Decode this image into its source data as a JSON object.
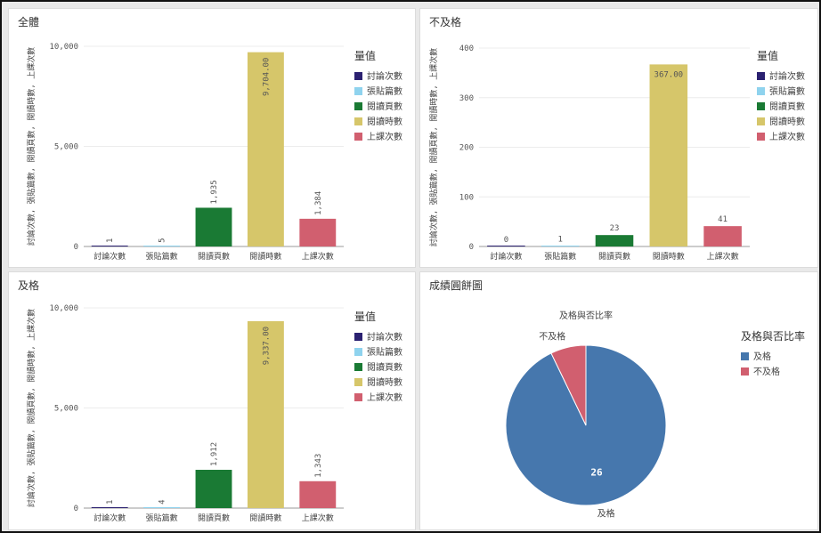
{
  "colors": {
    "討論次數": "#2b2171",
    "張貼篇數": "#8fd3ee",
    "閱讀頁數": "#1a7a34",
    "閱讀時數": "#d6c66a",
    "上課次數": "#d15f6f",
    "及格": "#4677ad",
    "不及格": "#d15f6f"
  },
  "panels": {
    "all": {
      "title": "全體",
      "y_axis_label": "討論次數, 張貼篇數, 閱讀頁數, 閱讀時數, 上課次數",
      "legend_title": "量值"
    },
    "fail": {
      "title": "不及格",
      "y_axis_label": "討論次數, 張貼篇數, 閱讀頁數, 閱讀時數, 上課次數",
      "legend_title": "量值"
    },
    "pass": {
      "title": "及格",
      "y_axis_label": "討論次數, 張貼篇數, 閱讀頁數, 閱讀時數, 上課次數",
      "legend_title": "量值"
    },
    "pie": {
      "title": "成績圓餅圖",
      "chart_title": "及格與否比率",
      "legend_title": "及格與否比率"
    }
  },
  "chart_data": [
    {
      "id": "all",
      "type": "bar",
      "title": "全體",
      "ylabel": "討論次數, 張貼篇數, 閱讀頁數, 閱讀時數, 上課次數",
      "categories": [
        "討論次數",
        "張貼篇數",
        "閱讀頁數",
        "閱讀時數",
        "上課次數"
      ],
      "values": [
        1,
        5,
        1935,
        9704,
        1384
      ],
      "value_labels": [
        "1",
        "5",
        "1,935",
        "9,704.00",
        "1,384"
      ],
      "yticks": [
        0,
        5000,
        10000
      ],
      "ytick_labels": [
        "0",
        "5,000",
        "10,000"
      ],
      "ylim": [
        0,
        10000
      ],
      "legend": [
        "討論次數",
        "張貼篇數",
        "閱讀頁數",
        "閱讀時數",
        "上課次數"
      ],
      "legend_title": "量值",
      "legend_position": "right"
    },
    {
      "id": "fail",
      "type": "bar",
      "title": "不及格",
      "ylabel": "討論次數, 張貼篇數, 閱讀頁數, 閱讀時數, 上課次數",
      "categories": [
        "討論次數",
        "張貼篇數",
        "閱讀頁數",
        "閱讀時數",
        "上課次數"
      ],
      "values": [
        0,
        1,
        23,
        367,
        41
      ],
      "value_labels": [
        "0",
        "1",
        "23",
        "367.00",
        "41"
      ],
      "yticks": [
        0,
        100,
        200,
        300,
        400
      ],
      "ytick_labels": [
        "0",
        "100",
        "200",
        "300",
        "400"
      ],
      "ylim": [
        0,
        400
      ],
      "legend": [
        "討論次數",
        "張貼篇數",
        "閱讀頁數",
        "閱讀時數",
        "上課次數"
      ],
      "legend_title": "量值",
      "legend_position": "right"
    },
    {
      "id": "pass",
      "type": "bar",
      "title": "及格",
      "ylabel": "討論次數, 張貼篇數, 閱讀頁數, 閱讀時數, 上課次數",
      "categories": [
        "討論次數",
        "張貼篇數",
        "閱讀頁數",
        "閱讀時數",
        "上課次數"
      ],
      "values": [
        1,
        4,
        1912,
        9337,
        1343
      ],
      "value_labels": [
        "1",
        "4",
        "1,912",
        "9,337.00",
        "1,343"
      ],
      "yticks": [
        0,
        5000,
        10000
      ],
      "ytick_labels": [
        "0",
        "5,000",
        "10,000"
      ],
      "ylim": [
        0,
        10000
      ],
      "legend": [
        "討論次數",
        "張貼篇數",
        "閱讀頁數",
        "閱讀時數",
        "上課次數"
      ],
      "legend_title": "量值",
      "legend_position": "right"
    },
    {
      "id": "pie",
      "type": "pie",
      "title": "及格與否比率",
      "slices": [
        {
          "label": "及格",
          "value": 26,
          "value_label": "26"
        },
        {
          "label": "不及格",
          "value": 2,
          "value_label": ""
        }
      ],
      "legend": [
        "及格",
        "不及格"
      ],
      "legend_title": "及格與否比率",
      "legend_position": "right"
    }
  ]
}
